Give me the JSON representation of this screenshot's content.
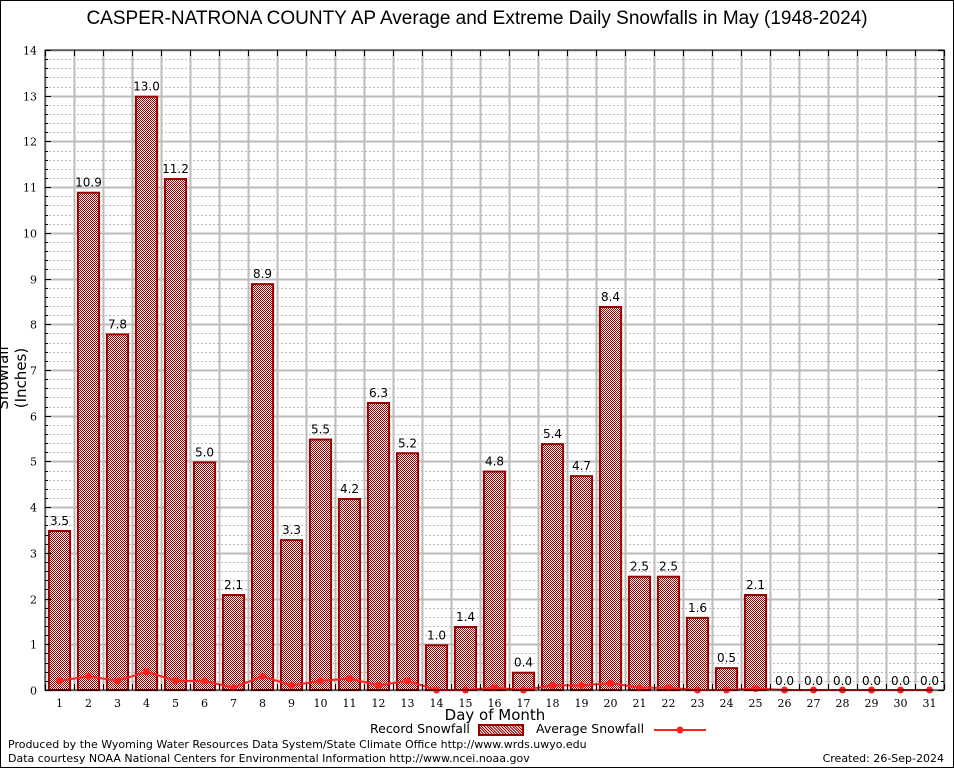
{
  "chart_data": {
    "type": "bar",
    "title": "CASPER-NATRONA COUNTY AP Average and Extreme Daily Snowfalls in May (1948-2024)",
    "xlabel": "Day of Month",
    "ylabel": "Snowfall (Inches)",
    "ylim": [
      0,
      14
    ],
    "yticks": [
      0,
      1,
      2,
      3,
      4,
      5,
      6,
      7,
      8,
      9,
      10,
      11,
      12,
      13,
      14
    ],
    "categories": [
      "1",
      "2",
      "3",
      "4",
      "5",
      "6",
      "7",
      "8",
      "9",
      "10",
      "11",
      "12",
      "13",
      "14",
      "15",
      "16",
      "17",
      "18",
      "19",
      "20",
      "21",
      "22",
      "23",
      "24",
      "25",
      "26",
      "27",
      "28",
      "29",
      "30",
      "31"
    ],
    "grid": true,
    "legend_position": "bottom",
    "series": [
      {
        "name": "Record Snowfall",
        "type": "bar",
        "color": "#990000",
        "values": [
          3.5,
          10.9,
          7.8,
          13.0,
          11.2,
          5.0,
          2.1,
          8.9,
          3.3,
          5.5,
          4.2,
          6.3,
          5.2,
          1.0,
          1.4,
          4.8,
          0.4,
          5.4,
          4.7,
          8.4,
          2.5,
          2.5,
          1.6,
          0.5,
          2.1,
          0.0,
          0.0,
          0.0,
          0.0,
          0.0,
          0.0
        ],
        "labels": [
          "3.5",
          "10.9",
          "7.8",
          "13.0",
          "11.2",
          "5.0",
          "2.1",
          "8.9",
          "3.3",
          "5.5",
          "4.2",
          "6.3",
          "5.2",
          "1.0",
          "1.4",
          "4.8",
          "0.4",
          "5.4",
          "4.7",
          "8.4",
          "2.5",
          "2.5",
          "1.6",
          "0.5",
          "2.1",
          "0.0",
          "0.0",
          "0.0",
          "0.0",
          "0.0",
          "0.0"
        ]
      },
      {
        "name": "Average Snowfall",
        "type": "line",
        "color": "#ff2020",
        "values": [
          0.2,
          0.3,
          0.2,
          0.4,
          0.2,
          0.2,
          0.05,
          0.3,
          0.1,
          0.2,
          0.25,
          0.1,
          0.2,
          0.0,
          0.0,
          0.05,
          0.0,
          0.1,
          0.1,
          0.15,
          0.05,
          0.05,
          0.0,
          0.0,
          0.03,
          0.0,
          0.0,
          0.0,
          0.0,
          0.0,
          0.0
        ]
      }
    ]
  },
  "footer": {
    "produced_by": "Produced by the Wyoming Water Resources Data System/State Climate Office http://www.wrds.uwyo.edu",
    "data_courtesy": "Data courtesy NOAA National Centers for Environmental Information http://www.ncei.noaa.gov",
    "created": "Created: 26-Sep-2024"
  }
}
